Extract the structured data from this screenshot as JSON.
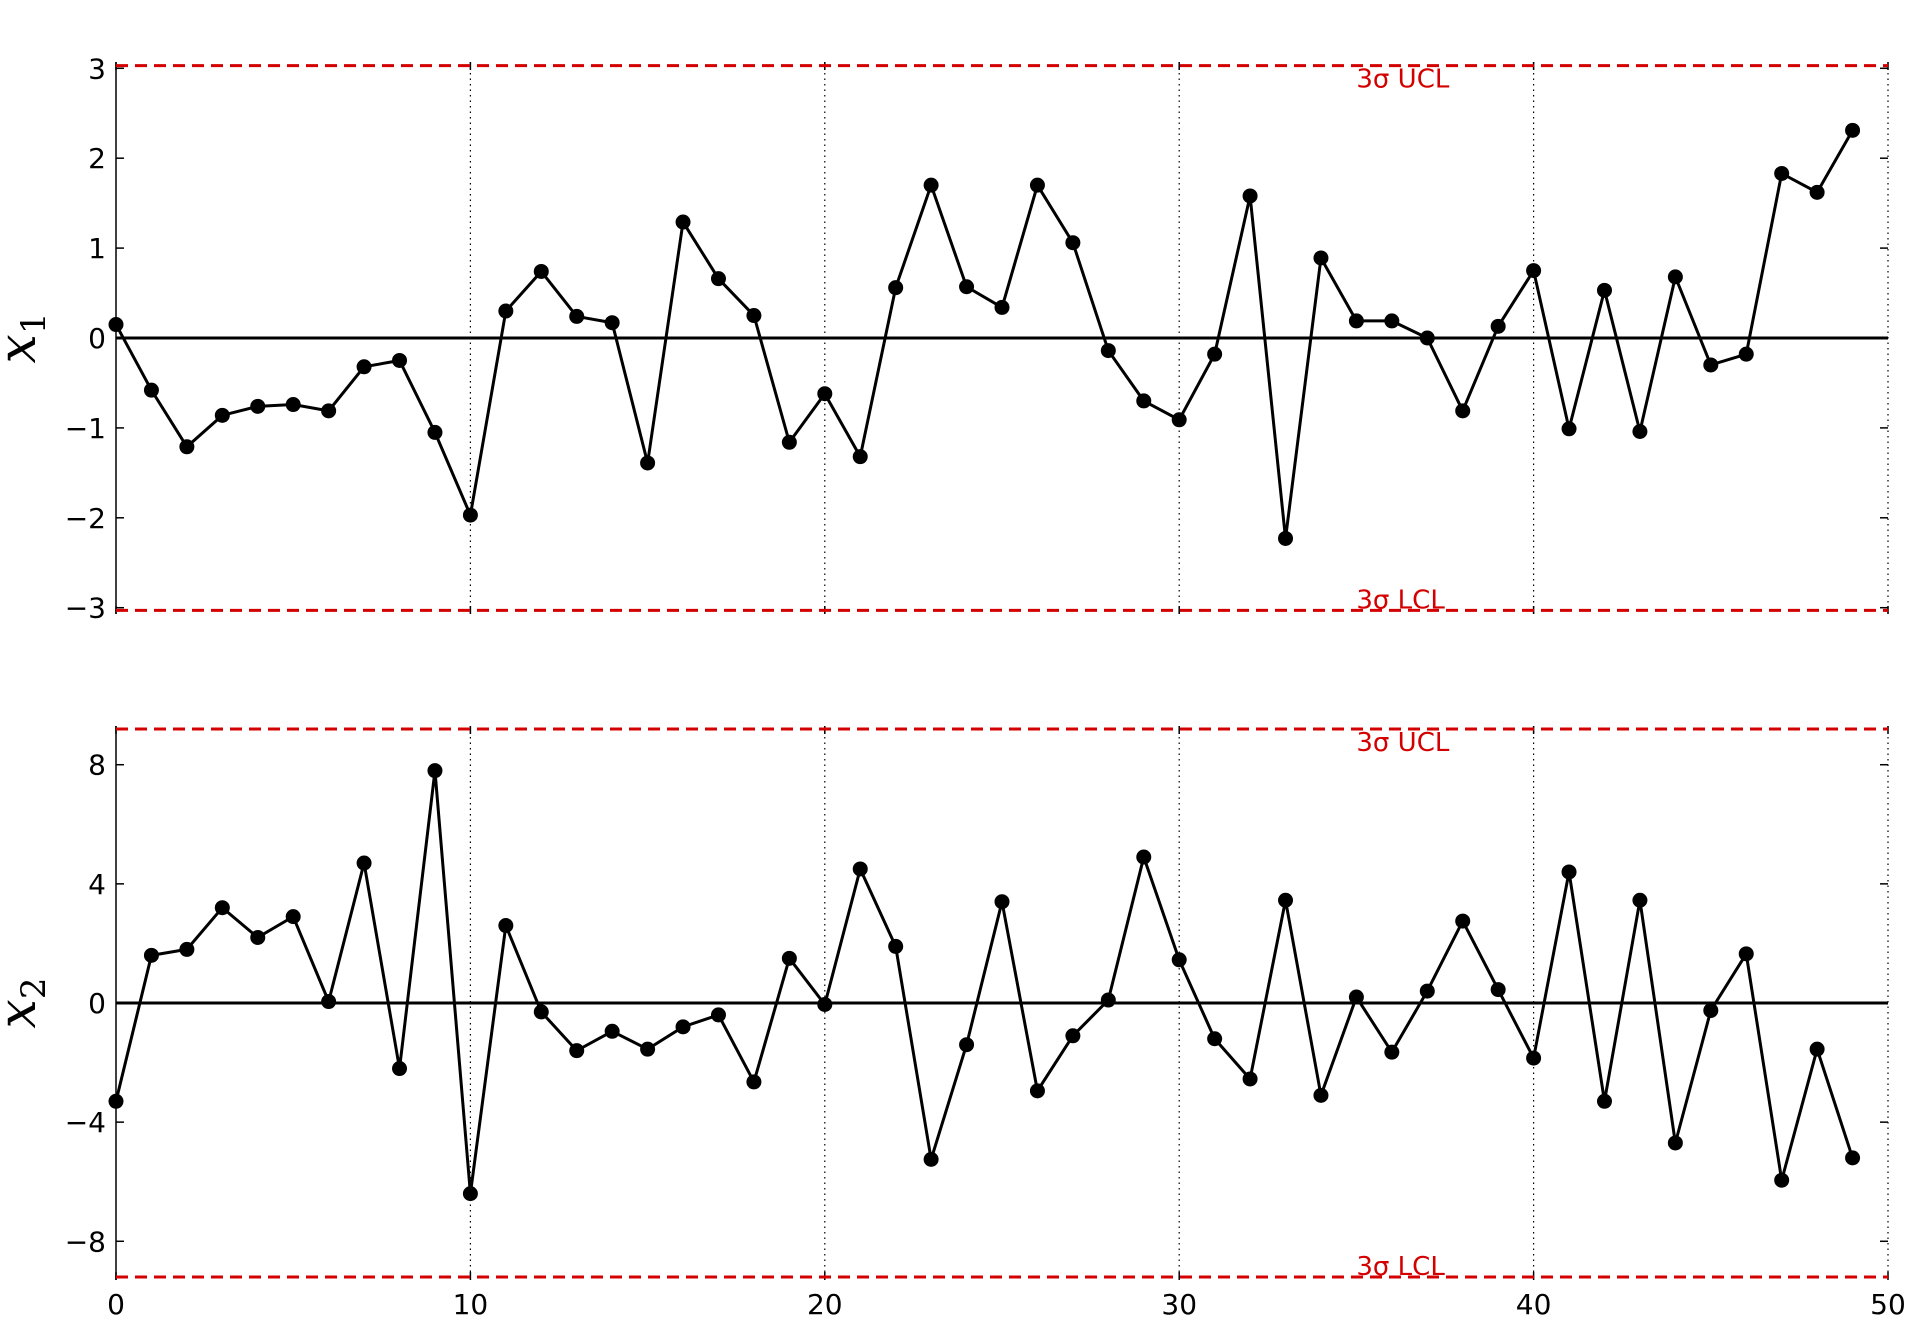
{
  "chart_data": [
    {
      "type": "line",
      "ylabel": "x",
      "ylabel_subscript": "1",
      "xlim": [
        0,
        50
      ],
      "ylim": [
        -3.07,
        3.07
      ],
      "xticks": [
        0,
        10,
        20,
        30,
        40,
        50
      ],
      "yticks": [
        -3,
        -2,
        -1,
        0,
        1,
        2,
        3
      ],
      "ytick_labels": [
        "−3",
        "−2",
        "−1",
        "0",
        "1",
        "2",
        "3"
      ],
      "vgrid": [
        10,
        20,
        30,
        40,
        50
      ],
      "center_line": 0,
      "ucl": 3.03,
      "lcl": -3.03,
      "ucl_label": "3σ UCL",
      "lcl_label": "3σ LCL",
      "limit_color": "#d40000",
      "line_color": "#000000",
      "x": [
        0,
        1,
        2,
        3,
        4,
        5,
        6,
        7,
        8,
        9,
        10,
        11,
        12,
        13,
        14,
        15,
        16,
        17,
        18,
        19,
        20,
        21,
        22,
        23,
        24,
        25,
        26,
        27,
        28,
        29,
        30,
        31,
        32,
        33,
        34,
        35,
        36,
        37,
        38,
        39,
        40,
        41,
        42,
        43,
        44,
        45,
        46,
        47,
        48,
        49
      ],
      "values": [
        0.15,
        -0.58,
        -1.21,
        -0.86,
        -0.76,
        -0.74,
        -0.81,
        -0.32,
        -0.25,
        -1.05,
        -1.97,
        0.3,
        0.74,
        0.24,
        0.17,
        -1.39,
        1.29,
        0.66,
        0.25,
        -1.16,
        -0.62,
        -1.32,
        0.56,
        1.7,
        0.57,
        0.34,
        1.7,
        1.06,
        -0.14,
        -0.7,
        -0.91,
        -0.18,
        1.58,
        -2.23,
        0.89,
        0.19,
        0.19,
        0.0,
        -0.81,
        0.13,
        0.75,
        -1.01,
        0.53,
        -1.04,
        0.68,
        -0.3,
        -0.18,
        1.83,
        1.62,
        2.31
      ]
    },
    {
      "type": "line",
      "ylabel": "x",
      "ylabel_subscript": "2",
      "xlim": [
        0,
        50
      ],
      "ylim": [
        -9.3,
        9.3
      ],
      "xticks": [
        0,
        10,
        20,
        30,
        40,
        50
      ],
      "xtick_labels": [
        "0",
        "10",
        "20",
        "30",
        "40",
        "50"
      ],
      "yticks": [
        -8,
        -4,
        0,
        4,
        8
      ],
      "ytick_labels": [
        "−8",
        "−4",
        "0",
        "4",
        "8"
      ],
      "vgrid": [
        10,
        20,
        30,
        40,
        50
      ],
      "center_line": 0,
      "ucl": 9.2,
      "lcl": -9.2,
      "ucl_label": "3σ UCL",
      "lcl_label": "3σ LCL",
      "limit_color": "#d40000",
      "line_color": "#000000",
      "x": [
        0,
        1,
        2,
        3,
        4,
        5,
        6,
        7,
        8,
        9,
        10,
        11,
        12,
        13,
        14,
        15,
        16,
        17,
        18,
        19,
        20,
        21,
        22,
        23,
        24,
        25,
        26,
        27,
        28,
        29,
        30,
        31,
        32,
        33,
        34,
        35,
        36,
        37,
        38,
        39,
        40,
        41,
        42,
        43,
        44,
        45,
        46,
        47,
        48,
        49
      ],
      "values": [
        -3.3,
        1.6,
        1.8,
        3.2,
        2.2,
        2.9,
        0.05,
        4.7,
        -2.2,
        7.8,
        -6.4,
        2.6,
        -0.3,
        -1.6,
        -0.95,
        -1.55,
        -0.8,
        -0.4,
        -2.65,
        1.5,
        -0.05,
        4.5,
        1.9,
        -5.25,
        -1.4,
        3.4,
        -2.95,
        -1.1,
        0.1,
        4.9,
        1.45,
        -1.2,
        -2.55,
        3.45,
        -3.1,
        0.2,
        -1.65,
        0.4,
        2.75,
        0.45,
        -1.85,
        4.4,
        -3.3,
        3.45,
        -4.7,
        -0.25,
        1.65,
        -5.95,
        -1.55,
        -5.2
      ]
    }
  ]
}
